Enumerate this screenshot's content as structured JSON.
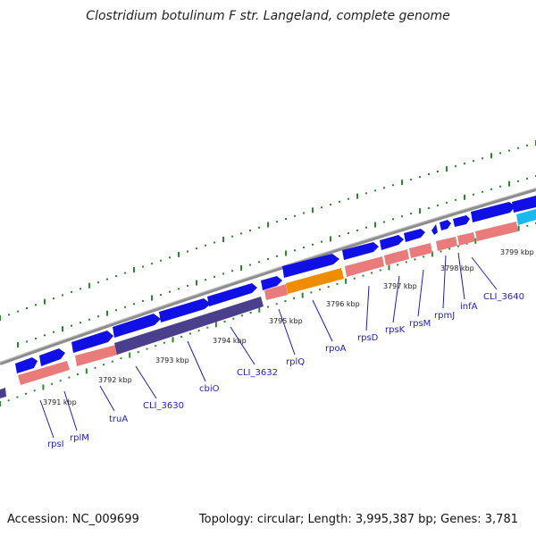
{
  "title": "Clostridium botulinum F str. Langeland, complete genome",
  "footer": {
    "accession": "Accession: NC_009699",
    "summary": "Topology: circular; Length: 3,995,387 bp; Genes: 3,781"
  },
  "colors": {
    "backbone": "#8c8c8c",
    "gene_blue": "#1010e6",
    "gene_pink": "#e97b7b",
    "gene_purple": "#4a3f8c",
    "gene_orange": "#f08c00",
    "gene_cyan": "#18b8f0",
    "dots": "#2a8a2a",
    "label": "#1c1cc8"
  },
  "scale_ticks": [
    {
      "label": "3791 kbp"
    },
    {
      "label": "3792 kbp"
    },
    {
      "label": "3793 kbp"
    },
    {
      "label": "3794 kbp"
    },
    {
      "label": "3795 kbp"
    },
    {
      "label": "3796 kbp"
    },
    {
      "label": "3797 kbp"
    },
    {
      "label": "3798 kbp"
    },
    {
      "label": "3799 kbp"
    }
  ],
  "gene_labels": [
    {
      "text": "rpsI"
    },
    {
      "text": "rplM"
    },
    {
      "text": "truA"
    },
    {
      "text": "CLI_3630"
    },
    {
      "text": "cbiO"
    },
    {
      "text": "CLI_3632"
    },
    {
      "text": "rplQ"
    },
    {
      "text": "rpoA"
    },
    {
      "text": "rpsD"
    },
    {
      "text": "rpsK"
    },
    {
      "text": "rpsM"
    },
    {
      "text": "rpmJ"
    },
    {
      "text": "infA"
    },
    {
      "text": "CLI_3640"
    }
  ]
}
